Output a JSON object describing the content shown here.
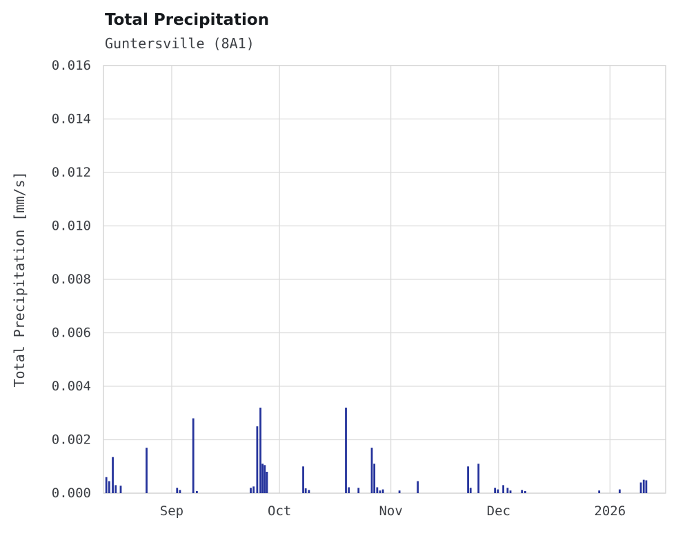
{
  "header": {
    "title": "Total Precipitation",
    "subtitle": "Guntersville (8A1)"
  },
  "chart_data": {
    "type": "bar",
    "title": "Total Precipitation",
    "subtitle": "Guntersville (8A1)",
    "xlabel": "",
    "ylabel": "Total Precipitation [mm/s]",
    "ylim": [
      0,
      0.016
    ],
    "yticks": [
      0.0,
      0.002,
      0.004,
      0.006,
      0.008,
      0.01,
      0.012,
      0.014,
      0.016
    ],
    "x_domain_days": [
      0,
      156.5
    ],
    "xticks": [
      {
        "label": "Sep",
        "day": 19
      },
      {
        "label": "Oct",
        "day": 49
      },
      {
        "label": "Nov",
        "day": 80
      },
      {
        "label": "Dec",
        "day": 110
      },
      {
        "label": "2026",
        "day": 141
      }
    ],
    "grid": true,
    "legend": "none",
    "colors": {
      "bar": "#26349c",
      "grid": "#dcdcdc",
      "border": "#d0d0d0",
      "background": "#ffffff",
      "text": "#3b3e43"
    },
    "units": "mm/s",
    "points": [
      {
        "d": 0.8,
        "v": 0.0006
      },
      {
        "d": 1.6,
        "v": 0.00045
      },
      {
        "d": 2.6,
        "v": 0.00135
      },
      {
        "d": 3.4,
        "v": 0.0003
      },
      {
        "d": 4.8,
        "v": 0.00028
      },
      {
        "d": 12.0,
        "v": 0.0017
      },
      {
        "d": 20.5,
        "v": 0.0002
      },
      {
        "d": 21.3,
        "v": 0.00012
      },
      {
        "d": 25.0,
        "v": 0.0028
      },
      {
        "d": 26.0,
        "v": 8e-05
      },
      {
        "d": 41.0,
        "v": 0.0002
      },
      {
        "d": 41.8,
        "v": 0.00025
      },
      {
        "d": 42.8,
        "v": 0.0025
      },
      {
        "d": 43.7,
        "v": 0.0032
      },
      {
        "d": 44.3,
        "v": 0.0011
      },
      {
        "d": 44.9,
        "v": 0.00105
      },
      {
        "d": 45.5,
        "v": 0.0008
      },
      {
        "d": 55.6,
        "v": 0.001
      },
      {
        "d": 56.3,
        "v": 0.00018
      },
      {
        "d": 57.2,
        "v": 0.00012
      },
      {
        "d": 67.5,
        "v": 0.0032
      },
      {
        "d": 68.3,
        "v": 0.00022
      },
      {
        "d": 71.0,
        "v": 0.0002
      },
      {
        "d": 74.7,
        "v": 0.0017
      },
      {
        "d": 75.4,
        "v": 0.0011
      },
      {
        "d": 76.2,
        "v": 0.00022
      },
      {
        "d": 77.0,
        "v": 0.0001
      },
      {
        "d": 77.8,
        "v": 0.00014
      },
      {
        "d": 82.4,
        "v": 0.0001
      },
      {
        "d": 87.5,
        "v": 0.00045
      },
      {
        "d": 101.5,
        "v": 0.001
      },
      {
        "d": 102.2,
        "v": 0.0002
      },
      {
        "d": 104.4,
        "v": 0.0011
      },
      {
        "d": 109.0,
        "v": 0.0002
      },
      {
        "d": 109.8,
        "v": 0.00014
      },
      {
        "d": 111.3,
        "v": 0.0003
      },
      {
        "d": 112.5,
        "v": 0.0002
      },
      {
        "d": 113.3,
        "v": 0.0001
      },
      {
        "d": 116.5,
        "v": 0.00012
      },
      {
        "d": 117.4,
        "v": 8e-05
      },
      {
        "d": 138.0,
        "v": 0.0001
      },
      {
        "d": 143.7,
        "v": 0.00014
      },
      {
        "d": 149.6,
        "v": 0.0004
      },
      {
        "d": 150.4,
        "v": 0.0005
      },
      {
        "d": 151.1,
        "v": 0.00048
      }
    ]
  }
}
